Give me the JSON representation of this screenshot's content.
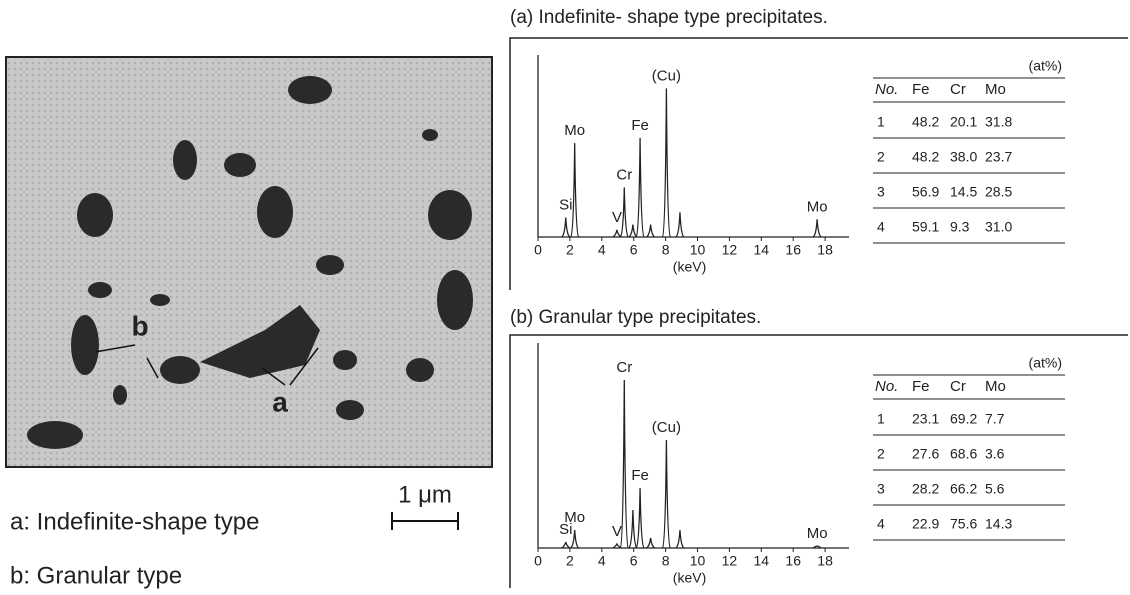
{
  "micrograph": {
    "labels": [
      "a",
      "b"
    ],
    "legend": [
      "a: Indefinite-shape type",
      "b: Granular type"
    ],
    "scale_bar": "1 μm"
  },
  "panels": [
    {
      "title": "(a)  Indefinite- shape type precipitates.",
      "spectrum": {
        "xlabel": "(keV)",
        "xlim": [
          0,
          19.5
        ],
        "xticks": [
          0,
          2,
          4,
          6,
          8,
          10,
          12,
          14,
          16,
          18
        ],
        "ylim": [
          0,
          100
        ],
        "peaks": [
          {
            "label": "Si",
            "x": 1.74,
            "height": 11
          },
          {
            "label": "Mo",
            "x": 2.3,
            "height": 53
          },
          {
            "label": "V",
            "x": 4.95,
            "height": 4
          },
          {
            "label": "Cr",
            "x": 5.41,
            "height": 28
          },
          {
            "label": null,
            "x": 5.95,
            "height": 7
          },
          {
            "label": "Fe",
            "x": 6.4,
            "height": 56
          },
          {
            "label": null,
            "x": 7.06,
            "height": 7
          },
          {
            "label": "(Cu)",
            "x": 8.05,
            "height": 84
          },
          {
            "label": null,
            "x": 8.9,
            "height": 14
          },
          {
            "label": "Mo",
            "x": 17.5,
            "height": 10
          }
        ]
      },
      "table": {
        "unit": "(at%)",
        "header": [
          "No.",
          "Fe",
          "Cr",
          "Mo"
        ],
        "rows": [
          [
            "1",
            "48.2",
            "20.1",
            "31.8"
          ],
          [
            "2",
            "48.2",
            "38.0",
            "23.7"
          ],
          [
            "3",
            "56.9",
            "14.5",
            "28.5"
          ],
          [
            "4",
            "59.1",
            "9.3",
            "31.0"
          ]
        ]
      }
    },
    {
      "title": "(b)  Granular  type  precipitates.",
      "spectrum": {
        "xlabel": "(keV)",
        "xlim": [
          0,
          19.5
        ],
        "xticks": [
          0,
          2,
          4,
          6,
          8,
          10,
          12,
          14,
          16,
          18
        ],
        "ylim": [
          0,
          100
        ],
        "peaks": [
          {
            "label": "Si",
            "x": 1.74,
            "height": 3
          },
          {
            "label": "Mo",
            "x": 2.3,
            "height": 9
          },
          {
            "label": "V",
            "x": 4.95,
            "height": 2
          },
          {
            "label": "Cr",
            "x": 5.41,
            "height": 84
          },
          {
            "label": null,
            "x": 5.95,
            "height": 19
          },
          {
            "label": "Fe",
            "x": 6.4,
            "height": 30
          },
          {
            "label": null,
            "x": 7.06,
            "height": 5
          },
          {
            "label": "(Cu)",
            "x": 8.05,
            "height": 54
          },
          {
            "label": null,
            "x": 8.9,
            "height": 9
          },
          {
            "label": "Mo",
            "x": 17.5,
            "height": 1
          }
        ]
      },
      "table": {
        "unit": "(at%)",
        "header": [
          "No.",
          "Fe",
          "Cr",
          "Mo"
        ],
        "rows": [
          [
            "1",
            "23.1",
            "69.2",
            "7.7"
          ],
          [
            "2",
            "27.6",
            "68.6",
            "3.6"
          ],
          [
            "3",
            "28.2",
            "66.2",
            "5.6"
          ],
          [
            "4",
            "22.9",
            "75.6",
            "14.3"
          ]
        ]
      }
    }
  ]
}
